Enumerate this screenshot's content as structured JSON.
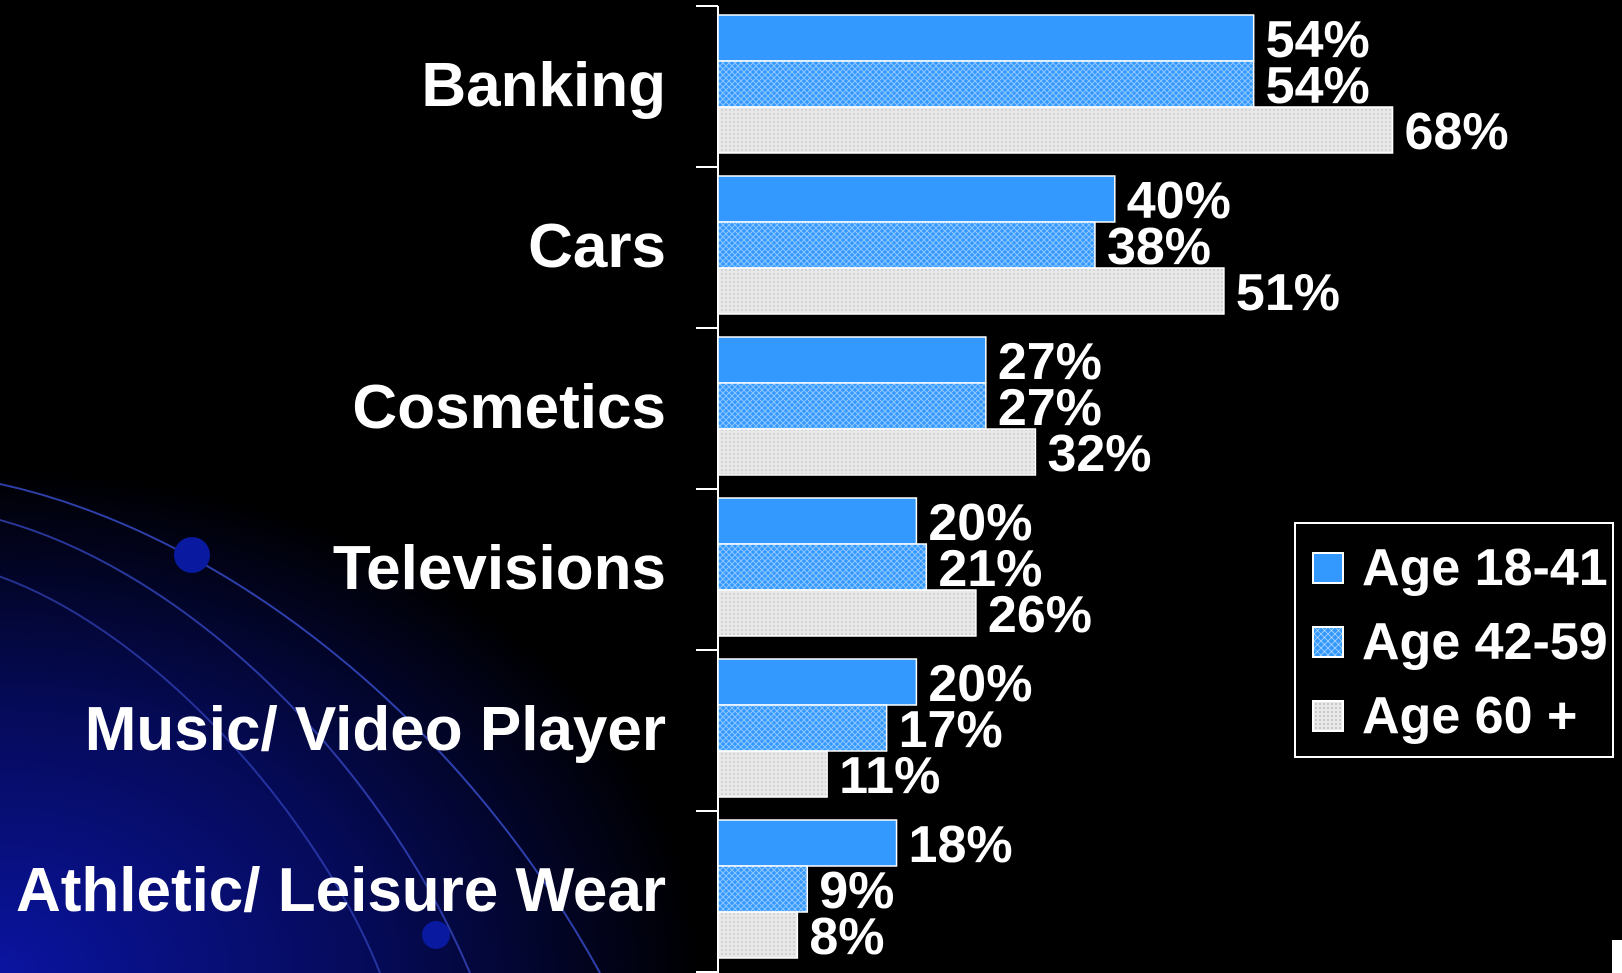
{
  "chart_data": {
    "type": "bar",
    "orientation": "horizontal",
    "categories": [
      "Banking",
      "Cars",
      "Cosmetics",
      "Televisions",
      "Music/ Video Player",
      "Athletic/ Leisure Wear"
    ],
    "series": [
      {
        "name": "Age 18-41",
        "values": [
          54,
          40,
          27,
          20,
          20,
          18
        ],
        "data_labels": [
          "54%",
          "40%",
          "27%",
          "20%",
          "20%",
          "18%"
        ],
        "color": "#3399ff",
        "pattern": "solid"
      },
      {
        "name": "Age 42-59",
        "values": [
          54,
          38,
          27,
          21,
          17,
          9
        ],
        "data_labels": [
          "54%",
          "38%",
          "27%",
          "21%",
          "17%",
          "9%"
        ],
        "color": "#3399ff",
        "pattern": "crosshatch"
      },
      {
        "name": "Age 60 +",
        "values": [
          68,
          51,
          32,
          26,
          11,
          8
        ],
        "data_labels": [
          "68%",
          "51%",
          "32%",
          "26%",
          "11%",
          "8%"
        ],
        "color": "#e8e8e8",
        "pattern": "dotted"
      }
    ],
    "xlim": [
      0,
      100
    ],
    "grid": false,
    "legend_position": "right"
  },
  "colors": {
    "background": "#000000",
    "text": "#ffffff",
    "accent_blue": "#3399ff",
    "light_gray": "#e8e8e8"
  }
}
